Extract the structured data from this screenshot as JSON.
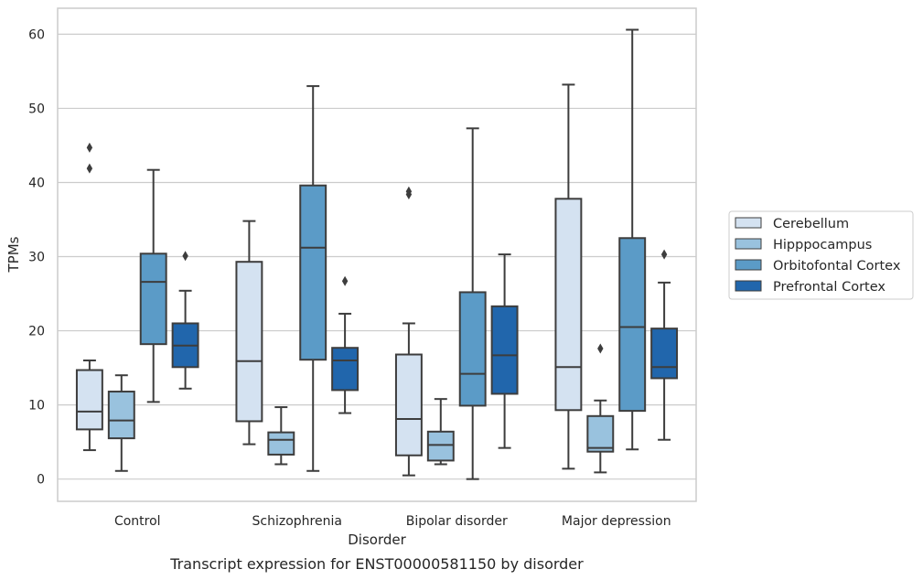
{
  "chart_data": {
    "type": "box",
    "xlabel": "Disorder",
    "ylabel": "TPMs",
    "caption": "Transcript expression for ENST00000581150 by disorder",
    "ylim": [
      -3,
      63.5
    ],
    "yticks": [
      0,
      10,
      20,
      30,
      40,
      50,
      60
    ],
    "categories": [
      "Control",
      "Schizophrenia",
      "Bipolar disorder",
      "Major depression"
    ],
    "grid": "horizontal",
    "legend_position": "right-center",
    "series": [
      {
        "name": "Cerebellum",
        "color": "#d4e2f1",
        "boxes": [
          {
            "whisker_low": 3.9,
            "q1": 6.7,
            "median": 9.1,
            "q3": 14.7,
            "whisker_high": 16.0,
            "outliers": [
              41.9,
              44.7
            ]
          },
          {
            "whisker_low": 4.7,
            "q1": 7.8,
            "median": 15.9,
            "q3": 29.3,
            "whisker_high": 34.8,
            "outliers": []
          },
          {
            "whisker_low": 0.5,
            "q1": 3.2,
            "median": 8.1,
            "q3": 16.8,
            "whisker_high": 21.0,
            "outliers": [
              38.4,
              38.8
            ]
          },
          {
            "whisker_low": 1.4,
            "q1": 9.3,
            "median": 15.1,
            "q3": 37.8,
            "whisker_high": 53.2,
            "outliers": []
          }
        ]
      },
      {
        "name": "Hipppocampus",
        "color": "#99c2de",
        "boxes": [
          {
            "whisker_low": 1.1,
            "q1": 5.5,
            "median": 7.9,
            "q3": 11.8,
            "whisker_high": 14.0,
            "outliers": []
          },
          {
            "whisker_low": 2.0,
            "q1": 3.3,
            "median": 5.3,
            "q3": 6.3,
            "whisker_high": 9.7,
            "outliers": []
          },
          {
            "whisker_low": 2.0,
            "q1": 2.5,
            "median": 4.6,
            "q3": 6.4,
            "whisker_high": 10.8,
            "outliers": []
          },
          {
            "whisker_low": 0.9,
            "q1": 3.7,
            "median": 4.2,
            "q3": 8.5,
            "whisker_high": 10.6,
            "outliers": [
              17.6
            ]
          }
        ]
      },
      {
        "name": "Orbitofontal Cortex",
        "color": "#5b9bc7",
        "boxes": [
          {
            "whisker_low": 10.4,
            "q1": 18.2,
            "median": 26.6,
            "q3": 30.4,
            "whisker_high": 41.7,
            "outliers": []
          },
          {
            "whisker_low": 1.1,
            "q1": 16.1,
            "median": 31.2,
            "q3": 39.6,
            "whisker_high": 53.0,
            "outliers": []
          },
          {
            "whisker_low": 0.0,
            "q1": 9.9,
            "median": 14.2,
            "q3": 25.2,
            "whisker_high": 47.3,
            "outliers": []
          },
          {
            "whisker_low": 4.0,
            "q1": 9.2,
            "median": 20.5,
            "q3": 32.5,
            "whisker_high": 60.6,
            "outliers": []
          }
        ]
      },
      {
        "name": "Prefrontal Cortex",
        "color": "#2166ac",
        "boxes": [
          {
            "whisker_low": 12.2,
            "q1": 15.1,
            "median": 18.0,
            "q3": 21.0,
            "whisker_high": 25.4,
            "outliers": [
              30.1
            ]
          },
          {
            "whisker_low": 8.9,
            "q1": 12.0,
            "median": 16.0,
            "q3": 17.7,
            "whisker_high": 22.3,
            "outliers": [
              26.7
            ]
          },
          {
            "whisker_low": 4.2,
            "q1": 11.5,
            "median": 16.7,
            "q3": 23.3,
            "whisker_high": 30.3,
            "outliers": []
          },
          {
            "whisker_low": 5.3,
            "q1": 13.6,
            "median": 15.1,
            "q3": 20.3,
            "whisker_high": 26.5,
            "outliers": [
              30.3
            ]
          }
        ]
      }
    ]
  }
}
